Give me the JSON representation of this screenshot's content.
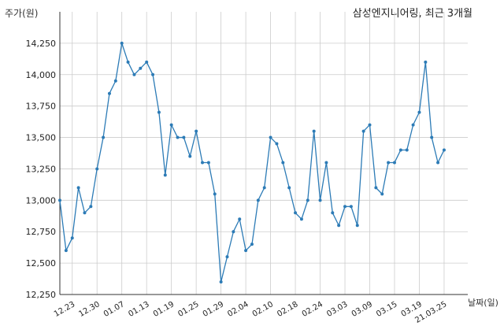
{
  "chart_data": {
    "type": "line",
    "title": "삼성엔지니어링, 최근 3개월",
    "ylabel": "주가(원)",
    "xlabel": "날짜(일)",
    "ylim": [
      12250,
      14500
    ],
    "ytick_values": [
      12250,
      12500,
      12750,
      13000,
      13250,
      13500,
      13750,
      14000,
      14250
    ],
    "ytick_labels": [
      "12,250",
      "12,500",
      "12,750",
      "13,000",
      "13,250",
      "13,500",
      "13,750",
      "14,000",
      "14,250"
    ],
    "xtick_labels": [
      "12.23",
      "12.30",
      "01.07",
      "01.13",
      "01.19",
      "01.25",
      "01.29",
      "02.04",
      "02.10",
      "02.18",
      "02.24",
      "03.03",
      "03.09",
      "03.15",
      "03.19",
      "21.03.25"
    ],
    "xtick_indices": [
      2,
      6,
      10,
      14,
      18,
      22,
      26,
      30,
      34,
      38,
      42,
      46,
      50,
      54,
      58,
      62
    ],
    "grid": true,
    "colors": {
      "line": "#2c7bb6",
      "grid": "#cccccc",
      "axis": "#333333"
    },
    "series": [
      {
        "values": [
          13000,
          12600,
          12700,
          13100,
          12900,
          12950,
          13250,
          13500,
          13850,
          13950,
          14250,
          14100,
          14000,
          14050,
          14100,
          14000,
          13700,
          13200,
          13600,
          13500,
          13500,
          13350,
          13550,
          13300,
          13300,
          13050,
          12350,
          12550,
          12750,
          12850,
          12600,
          12650,
          13000,
          13100,
          13500,
          13450,
          13300,
          13100,
          12900,
          12850,
          13000,
          13550,
          13000,
          13300,
          12900,
          12800,
          12950,
          12950,
          12800,
          13550,
          13600,
          13100,
          13050,
          13300,
          13300,
          13400,
          13400,
          13600,
          13700,
          14100,
          13500,
          13300,
          13400
        ]
      }
    ]
  }
}
